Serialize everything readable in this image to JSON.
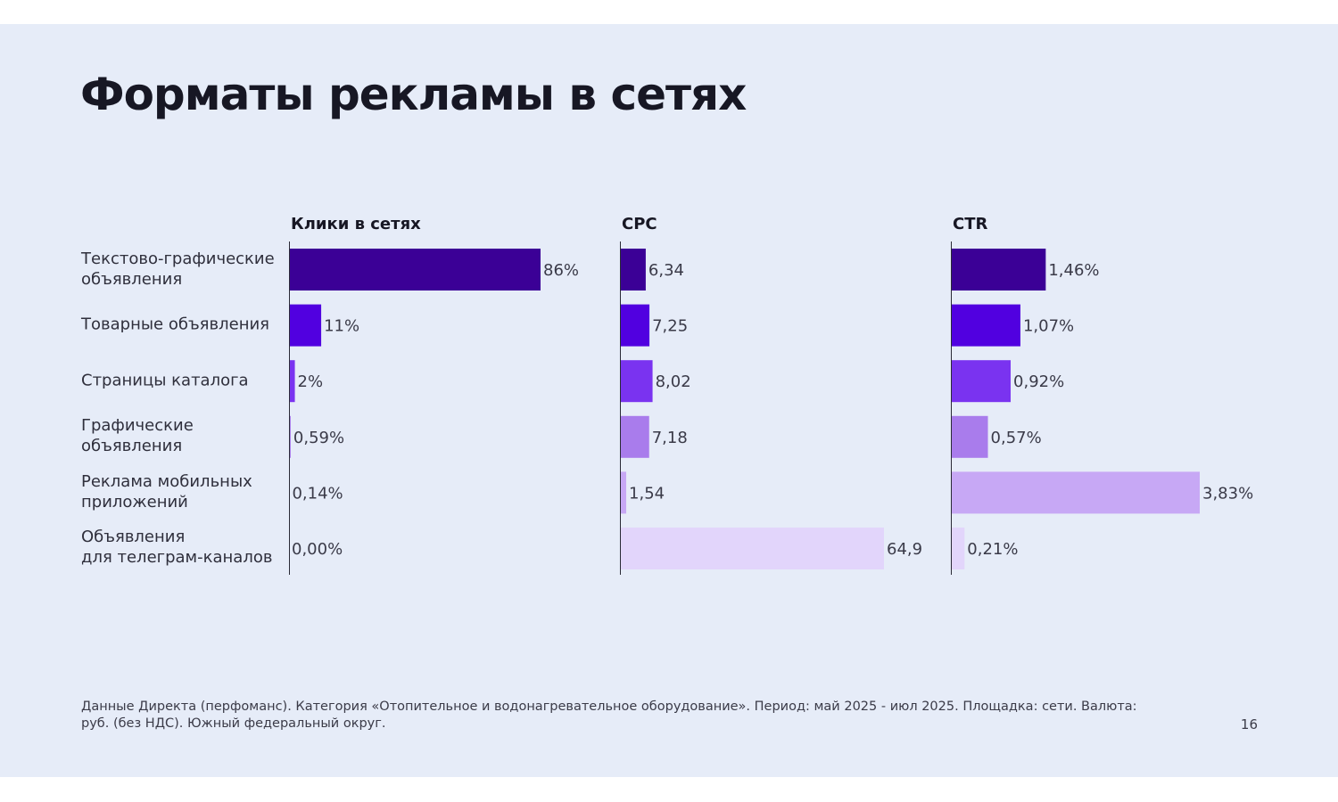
{
  "slide": {
    "title": "Форматы рекламы в сетях",
    "footnote": "Данные Директа (перфоманс). Категория «Отопительное и водонагревательное оборудование». Период: май 2025 - июл 2025. Площадка: сети. Валюта: руб. (без НДС). Южный федеральный округ.",
    "page_number": "16"
  },
  "chart_data": {
    "type": "bar",
    "orientation": "horizontal",
    "categories": [
      "Текстово-графические\nобъявления",
      "Товарные объявления",
      "Страницы каталога",
      "Графические\nобъявления",
      "Реклама мобильных\nприложений",
      "Объявления\nдля телеграм-каналов"
    ],
    "bar_colors": [
      "#3b0096",
      "#5100e0",
      "#7a33f0",
      "#a97cec",
      "#c7a8f5",
      "#e2d5fb"
    ],
    "panels": [
      {
        "title": "Клики в сетях",
        "values": [
          86,
          11,
          2,
          0.59,
          0.14,
          0
        ],
        "labels": [
          "86%",
          "11%",
          "2%",
          "0,59%",
          "0,14%",
          "0,00%"
        ],
        "xlim": [
          0,
          86
        ]
      },
      {
        "title": "CPC",
        "values": [
          6.34,
          7.25,
          8.02,
          7.18,
          1.54,
          64.9
        ],
        "labels": [
          "6,34",
          "7,25",
          "8,02",
          "7,18",
          "1,54",
          "64,9"
        ],
        "xlim": [
          0,
          64.9
        ]
      },
      {
        "title": "CTR",
        "values": [
          1.46,
          1.07,
          0.92,
          0.57,
          3.83,
          0.21
        ],
        "labels": [
          "1,46%",
          "1,07%",
          "0,92%",
          "0,57%",
          "3,83%",
          "0,21%"
        ],
        "xlim": [
          0,
          3.83
        ]
      }
    ],
    "grid": false,
    "legend": "none"
  }
}
